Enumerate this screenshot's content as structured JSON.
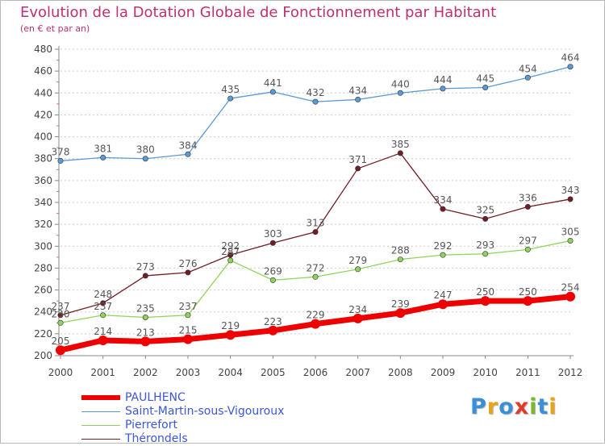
{
  "chart_data": {
    "type": "line",
    "title": "Evolution de la Dotation Globale de Fonctionnement par Habitant",
    "subtitle": "(en € et par an)",
    "x": [
      "2000",
      "2001",
      "2002",
      "2003",
      "2004",
      "2005",
      "2006",
      "2007",
      "2008",
      "2009",
      "2010",
      "2011",
      "2012"
    ],
    "ylim": [
      200,
      480
    ],
    "yticks": [
      200,
      220,
      240,
      260,
      280,
      300,
      320,
      340,
      360,
      380,
      400,
      420,
      440,
      460,
      480
    ],
    "grid": "horizontal, dotted",
    "legend_position": "bottom-left",
    "series": [
      {
        "name": "Saint-Martin-sous-Vigouroux",
        "color": "#5b9bd5",
        "values": [
          378,
          381,
          380,
          384,
          435,
          441,
          432,
          434,
          440,
          444,
          445,
          454,
          464
        ]
      },
      {
        "name": "Thérondels",
        "color": "#6e1e24",
        "values": [
          237,
          248,
          273,
          276,
          292,
          303,
          313,
          371,
          385,
          334,
          325,
          336,
          343
        ]
      },
      {
        "name": "Pierrefort",
        "color": "#8fd35c",
        "values": [
          230,
          237,
          235,
          237,
          287,
          269,
          272,
          279,
          288,
          292,
          293,
          297,
          305
        ]
      },
      {
        "name": "PAULHENC",
        "color": "#ee0000",
        "values": [
          205,
          214,
          213,
          215,
          219,
          223,
          229,
          234,
          239,
          247,
          250,
          250,
          254
        ]
      }
    ],
    "data_labels": [
      [
        "378",
        "381",
        "380",
        "384",
        "435",
        "441",
        "432",
        "434",
        "440",
        "444",
        "445",
        "454",
        "464"
      ],
      [
        "237",
        "248",
        "273",
        "276",
        "292",
        "303",
        "313",
        "371",
        "385",
        "334",
        "325",
        "336",
        "343"
      ],
      [
        "230",
        "237",
        "235",
        "237",
        "287",
        "269",
        "272",
        "279",
        "288",
        "292",
        "293",
        "297",
        "305"
      ],
      [
        "205",
        "214",
        "213",
        "215",
        "219",
        "223",
        "229",
        "234",
        "239",
        "247",
        "250",
        "250",
        "254"
      ]
    ]
  },
  "legend": [
    {
      "name": "PAULHENC",
      "color": "#ee0000",
      "thickness": 6
    },
    {
      "name": "Saint-Martin-sous-Vigouroux",
      "color": "#5b9bd5",
      "thickness": 1
    },
    {
      "name": "Pierrefort",
      "color": "#8fd35c",
      "thickness": 1
    },
    {
      "name": "Thérondels",
      "color": "#6e1e24",
      "thickness": 1
    }
  ],
  "logo": {
    "letters": [
      "P",
      "r",
      "o",
      "x",
      "i",
      "t",
      "i"
    ],
    "colors": [
      "#3a8fd9",
      "#e8a317",
      "#3a8fd9",
      "#e03a2a",
      "#7ab829",
      "#3a8fd9",
      "#e8a317"
    ]
  }
}
